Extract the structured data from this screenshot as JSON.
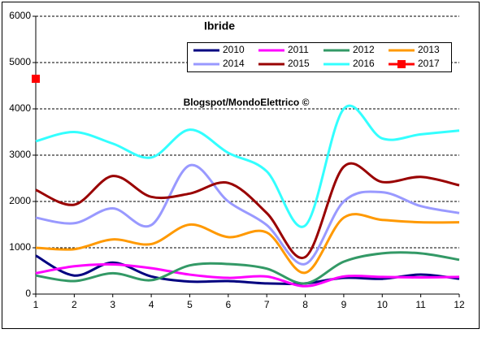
{
  "chart_data": {
    "type": "line",
    "title": "Ibride",
    "annotation": "Blogspot/MondoElettrico ©",
    "x": [
      1,
      2,
      3,
      4,
      5,
      6,
      7,
      8,
      9,
      10,
      11,
      12
    ],
    "xlim": [
      1,
      12
    ],
    "xticks": [
      1,
      2,
      3,
      4,
      5,
      6,
      7,
      8,
      9,
      10,
      11,
      12
    ],
    "ylim": [
      0,
      6000
    ],
    "yticks": [
      0,
      1000,
      2000,
      3000,
      4000,
      5000,
      6000
    ],
    "grid": true,
    "smooth": true,
    "legend": "top",
    "series": [
      {
        "name": "2010",
        "color": "#000080",
        "values": [
          830,
          400,
          680,
          380,
          270,
          280,
          230,
          230,
          350,
          330,
          420,
          330
        ]
      },
      {
        "name": "2011",
        "color": "#ff00ff",
        "values": [
          450,
          600,
          640,
          560,
          420,
          350,
          380,
          170,
          380,
          370,
          360,
          370
        ]
      },
      {
        "name": "2012",
        "color": "#339966",
        "values": [
          400,
          280,
          450,
          300,
          620,
          650,
          550,
          230,
          700,
          880,
          880,
          740
        ]
      },
      {
        "name": "2013",
        "color": "#ff9900",
        "values": [
          1000,
          970,
          1180,
          1080,
          1500,
          1230,
          1330,
          460,
          1650,
          1600,
          1550,
          1550
        ]
      },
      {
        "name": "2014",
        "color": "#9999ff",
        "values": [
          1650,
          1530,
          1850,
          1490,
          2780,
          2000,
          1490,
          650,
          2000,
          2200,
          1900,
          1750
        ]
      },
      {
        "name": "2015",
        "color": "#990000",
        "values": [
          2250,
          1930,
          2550,
          2100,
          2170,
          2400,
          1750,
          800,
          2750,
          2420,
          2530,
          2350
        ]
      },
      {
        "name": "2016",
        "color": "#33ffff",
        "values": [
          3300,
          3500,
          3250,
          2950,
          3550,
          3050,
          2650,
          1480,
          4000,
          3360,
          3450,
          3530
        ]
      },
      {
        "name": "2017",
        "color": "#ff0000",
        "marker": "square",
        "values": [
          4650,
          null,
          null,
          null,
          null,
          null,
          null,
          null,
          null,
          null,
          null,
          null
        ]
      }
    ]
  }
}
